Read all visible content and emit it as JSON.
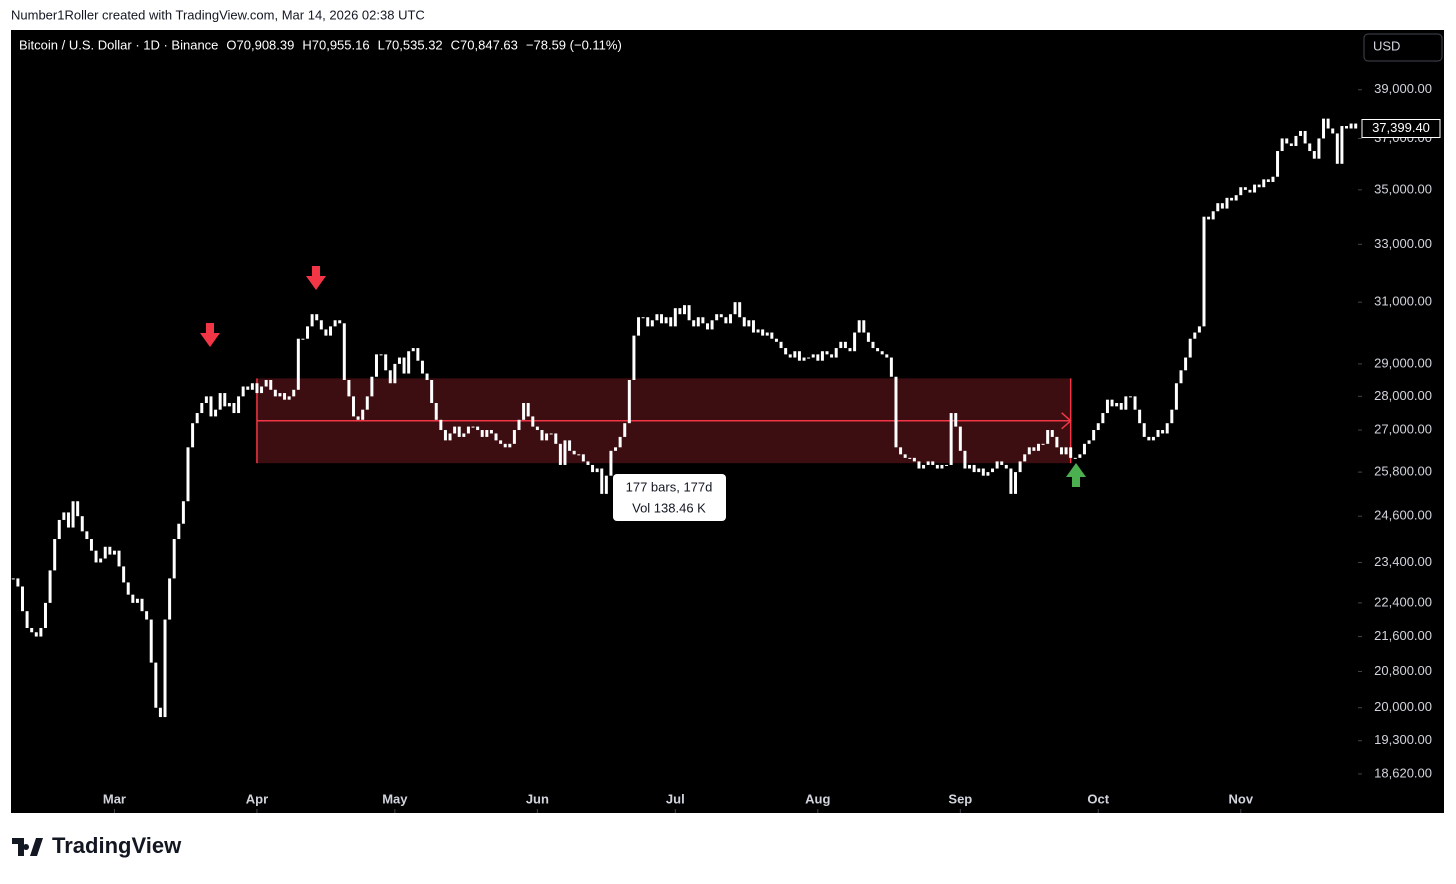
{
  "header": {
    "attribution": "Number1Roller created with TradingView.com, Mar 14, 2026 02:38 UTC"
  },
  "footer": {
    "logo": "TradingView"
  },
  "chart_data": {
    "type": "candlestick",
    "title": "Bitcoin / U.S. Dollar · 1D · Binance",
    "ohlc_legend": [
      "O70,908.39",
      "H70,955.16",
      "L70,535.32",
      "C70,847.63",
      "−78.59 (−0.11%)"
    ],
    "currency": "USD",
    "color": "#ffffff",
    "log_scale": true,
    "values": [
      23000,
      22800,
      22200,
      21800,
      21700,
      21600,
      21800,
      22400,
      23200,
      24000,
      24500,
      24700,
      24300,
      25000,
      24600,
      24200,
      24000,
      23700,
      23400,
      23500,
      23800,
      23600,
      23700,
      23300,
      22900,
      22600,
      22400,
      22500,
      22200,
      22000,
      21000,
      20000,
      19800,
      22000,
      23000,
      24000,
      24400,
      25000,
      26500,
      27200,
      27500,
      27800,
      28000,
      27400,
      27600,
      28100,
      27700,
      27800,
      27500,
      28000,
      28300,
      28200,
      28400,
      28100,
      28300,
      28500,
      28200,
      28000,
      28100,
      27900,
      28000,
      28200,
      29800,
      29800,
      30200,
      30600,
      30400,
      30100,
      29900,
      30200,
      30400,
      30300,
      28500,
      28000,
      27400,
      27300,
      27600,
      28000,
      28600,
      29300,
      29300,
      28800,
      28400,
      29000,
      29200,
      28700,
      29400,
      29500,
      29100,
      28700,
      28500,
      27800,
      27300,
      27000,
      26700,
      26900,
      27100,
      26800,
      26900,
      27100,
      27100,
      27000,
      26800,
      27000,
      26900,
      26700,
      26600,
      26500,
      26600,
      27000,
      27300,
      27800,
      27400,
      27100,
      27000,
      26700,
      26900,
      26900,
      26600,
      26000,
      26700,
      26400,
      26300,
      26300,
      26100,
      26000,
      25800,
      25900,
      25200,
      25700,
      26400,
      26500,
      26800,
      27200,
      28500,
      29900,
      30500,
      30500,
      30200,
      30400,
      30600,
      30300,
      30500,
      30200,
      30800,
      30600,
      30900,
      30400,
      30200,
      30500,
      30300,
      30100,
      30400,
      30600,
      30500,
      30300,
      30600,
      31000,
      30500,
      30200,
      30400,
      30000,
      30100,
      29900,
      30000,
      29800,
      29700,
      29500,
      29300,
      29200,
      29400,
      29100,
      29200,
      29200,
      29300,
      29100,
      29400,
      29300,
      29200,
      29500,
      29700,
      29500,
      29400,
      30000,
      30400,
      30000,
      29700,
      29500,
      29400,
      29300,
      29200,
      28600,
      26500,
      26300,
      26200,
      26200,
      26100,
      25900,
      26000,
      26100,
      26000,
      25900,
      26000,
      26000,
      27500,
      27100,
      26400,
      25900,
      26000,
      25800,
      25900,
      25700,
      25800,
      25900,
      26100,
      26000,
      25900,
      25200,
      25800,
      26100,
      26300,
      26500,
      26400,
      26600,
      26600,
      27000,
      26800,
      26500,
      26300,
      26500,
      26200,
      26200,
      26300,
      26600,
      26700,
      27000,
      27200,
      27500,
      27900,
      27700,
      27800,
      27600,
      28000,
      28000,
      27600,
      27200,
      26800,
      26700,
      26800,
      27000,
      26900,
      27200,
      27600,
      28400,
      28800,
      29200,
      29800,
      30000,
      30200,
      34000,
      33900,
      34200,
      34500,
      34300,
      34700,
      34600,
      34800,
      35100,
      35000,
      34900,
      35200,
      35100,
      35400,
      35300,
      35500,
      36500,
      37000,
      36800,
      36700,
      37100,
      37300,
      36800,
      36500,
      36200,
      37000,
      37800,
      37400,
      37200,
      36000,
      37500,
      37400,
      37600,
      37399.4
    ],
    "last_price": {
      "value": 37399.4,
      "label": "37,399.40"
    },
    "xlim": [
      -0.5,
      292.5
    ],
    "xticks": [
      {
        "value": 22,
        "label": "Mar"
      },
      {
        "value": 53,
        "label": "Apr"
      },
      {
        "value": 83,
        "label": "May"
      },
      {
        "value": 114,
        "label": "Jun"
      },
      {
        "value": 144,
        "label": "Jul"
      },
      {
        "value": 175,
        "label": "Aug"
      },
      {
        "value": 206,
        "label": "Sep"
      },
      {
        "value": 236,
        "label": "Oct"
      },
      {
        "value": 267,
        "label": "Nov"
      }
    ],
    "ylim": [
      17850,
      41600
    ],
    "yticks": [
      {
        "value": 39000,
        "label": "39,000.00"
      },
      {
        "value": 37000,
        "label": "37,000.00"
      },
      {
        "value": 35000,
        "label": "35,000.00"
      },
      {
        "value": 33000,
        "label": "33,000.00"
      },
      {
        "value": 31000,
        "label": "31,000.00"
      },
      {
        "value": 29000,
        "label": "29,000.00"
      },
      {
        "value": 28000,
        "label": "28,000.00"
      },
      {
        "value": 27000,
        "label": "27,000.00"
      },
      {
        "value": 25800,
        "label": "25,800.00"
      },
      {
        "value": 24600,
        "label": "24,600.00"
      },
      {
        "value": 23400,
        "label": "23,400.00"
      },
      {
        "value": 22400,
        "label": "22,400.00"
      },
      {
        "value": 21600,
        "label": "21,600.00"
      },
      {
        "value": 20800,
        "label": "20,800.00"
      },
      {
        "value": 20000,
        "label": "20,000.00"
      },
      {
        "value": 19300,
        "label": "19,300.00"
      },
      {
        "value": 18620,
        "label": "18,620.00"
      }
    ],
    "range": {
      "start": 53,
      "end": 230,
      "low": 26050,
      "high": 28550,
      "color": "#f23645",
      "label_lines": [
        "177 bars, 177d",
        "Vol 138.46 K"
      ]
    }
  }
}
